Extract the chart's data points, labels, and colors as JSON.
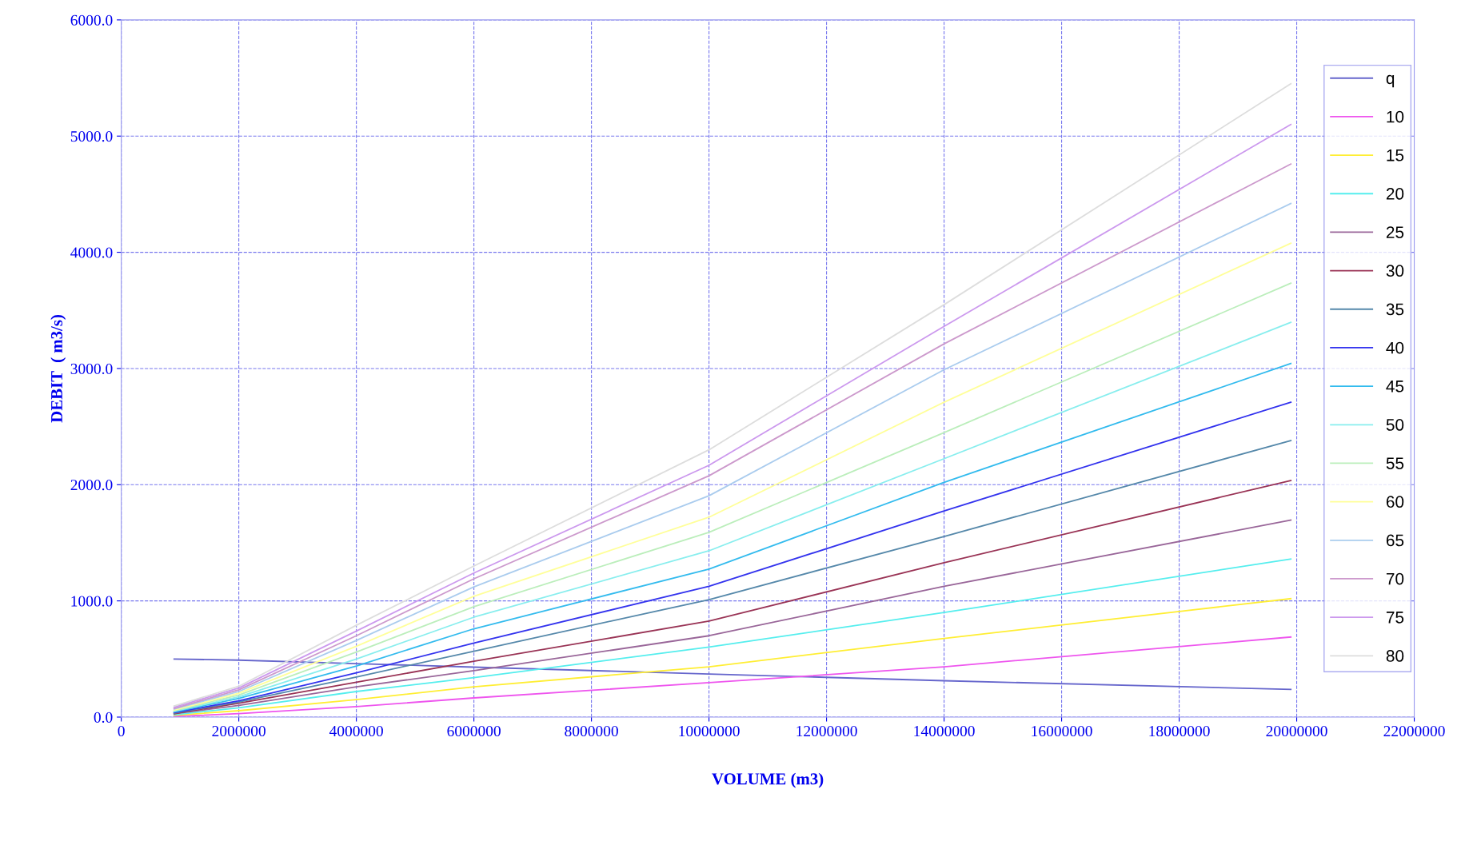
{
  "chart_data": {
    "type": "line",
    "xlabel": "VOLUME (m3)",
    "ylabel": "DEBIT  ( m3/s)",
    "x": [
      900000,
      2000000,
      4000000,
      6000000,
      10000000,
      14000000,
      19900000
    ],
    "xlim": [
      0,
      22000000
    ],
    "xticks": [
      0,
      2000000,
      4000000,
      6000000,
      8000000,
      10000000,
      12000000,
      14000000,
      16000000,
      18000000,
      20000000,
      22000000
    ],
    "ylim": [
      0,
      6000
    ],
    "yticks": [
      {
        "value": 0,
        "label": "0.0"
      },
      {
        "value": 1000,
        "label": "1000.0"
      },
      {
        "value": 2000,
        "label": "2000.0"
      },
      {
        "value": 3000,
        "label": "3000.0"
      },
      {
        "value": 4000,
        "label": "4000.0"
      },
      {
        "value": 5000,
        "label": "5000.0"
      },
      {
        "value": 6000,
        "label": "6000.0"
      }
    ],
    "grid": true,
    "legend": "right",
    "marker": "none",
    "line_style": "solid",
    "series": [
      {
        "name": "q",
        "color": "#6666cc",
        "values": [
          500,
          490,
          460,
          430,
          371,
          313,
          238
        ]
      },
      {
        "name": "10",
        "color": "#ee55ee",
        "values": [
          5,
          30,
          90,
          165,
          296,
          433,
          689
        ]
      },
      {
        "name": "15",
        "color": "#ffee33",
        "values": [
          15,
          55,
          150,
          260,
          433,
          677,
          1019
        ]
      },
      {
        "name": "20",
        "color": "#55eeee",
        "values": [
          20,
          80,
          220,
          340,
          602,
          900,
          1360
        ]
      },
      {
        "name": "25",
        "color": "#996699",
        "values": [
          30,
          100,
          260,
          400,
          700,
          1125,
          1695
        ]
      },
      {
        "name": "30",
        "color": "#993355",
        "values": [
          30,
          120,
          300,
          480,
          826,
          1329,
          2036
        ]
      },
      {
        "name": "35",
        "color": "#5588aa",
        "values": [
          35,
          130,
          345,
          567,
          1011,
          1554,
          2380
        ]
      },
      {
        "name": "40",
        "color": "#3333ee",
        "values": [
          40,
          140,
          380,
          637,
          1125,
          1774,
          2710
        ]
      },
      {
        "name": "45",
        "color": "#33bbee",
        "values": [
          45,
          160,
          440,
          760,
          1273,
          2020,
          3043
        ]
      },
      {
        "name": "50",
        "color": "#88eeee",
        "values": [
          50,
          175,
          500,
          860,
          1431,
          2224,
          3397
        ]
      },
      {
        "name": "55",
        "color": "#bbeebb",
        "values": [
          55,
          190,
          560,
          950,
          1590,
          2448,
          3734
        ]
      },
      {
        "name": "60",
        "color": "#ffff99",
        "values": [
          60,
          205,
          610,
          1040,
          1720,
          2710,
          4078
        ]
      },
      {
        "name": "65",
        "color": "#aaccee",
        "values": [
          70,
          220,
          660,
          1120,
          1905,
          2989,
          4420
        ]
      },
      {
        "name": "70",
        "color": "#cc99cc",
        "values": [
          75,
          235,
          700,
          1190,
          2077,
          3212,
          4760
        ]
      },
      {
        "name": "75",
        "color": "#cc99ee",
        "values": [
          85,
          250,
          740,
          1240,
          2167,
          3363,
          5100
        ]
      },
      {
        "name": "80",
        "color": "#dddddd",
        "values": [
          95,
          265,
          790,
          1300,
          2300,
          3549,
          5450
        ]
      }
    ]
  }
}
